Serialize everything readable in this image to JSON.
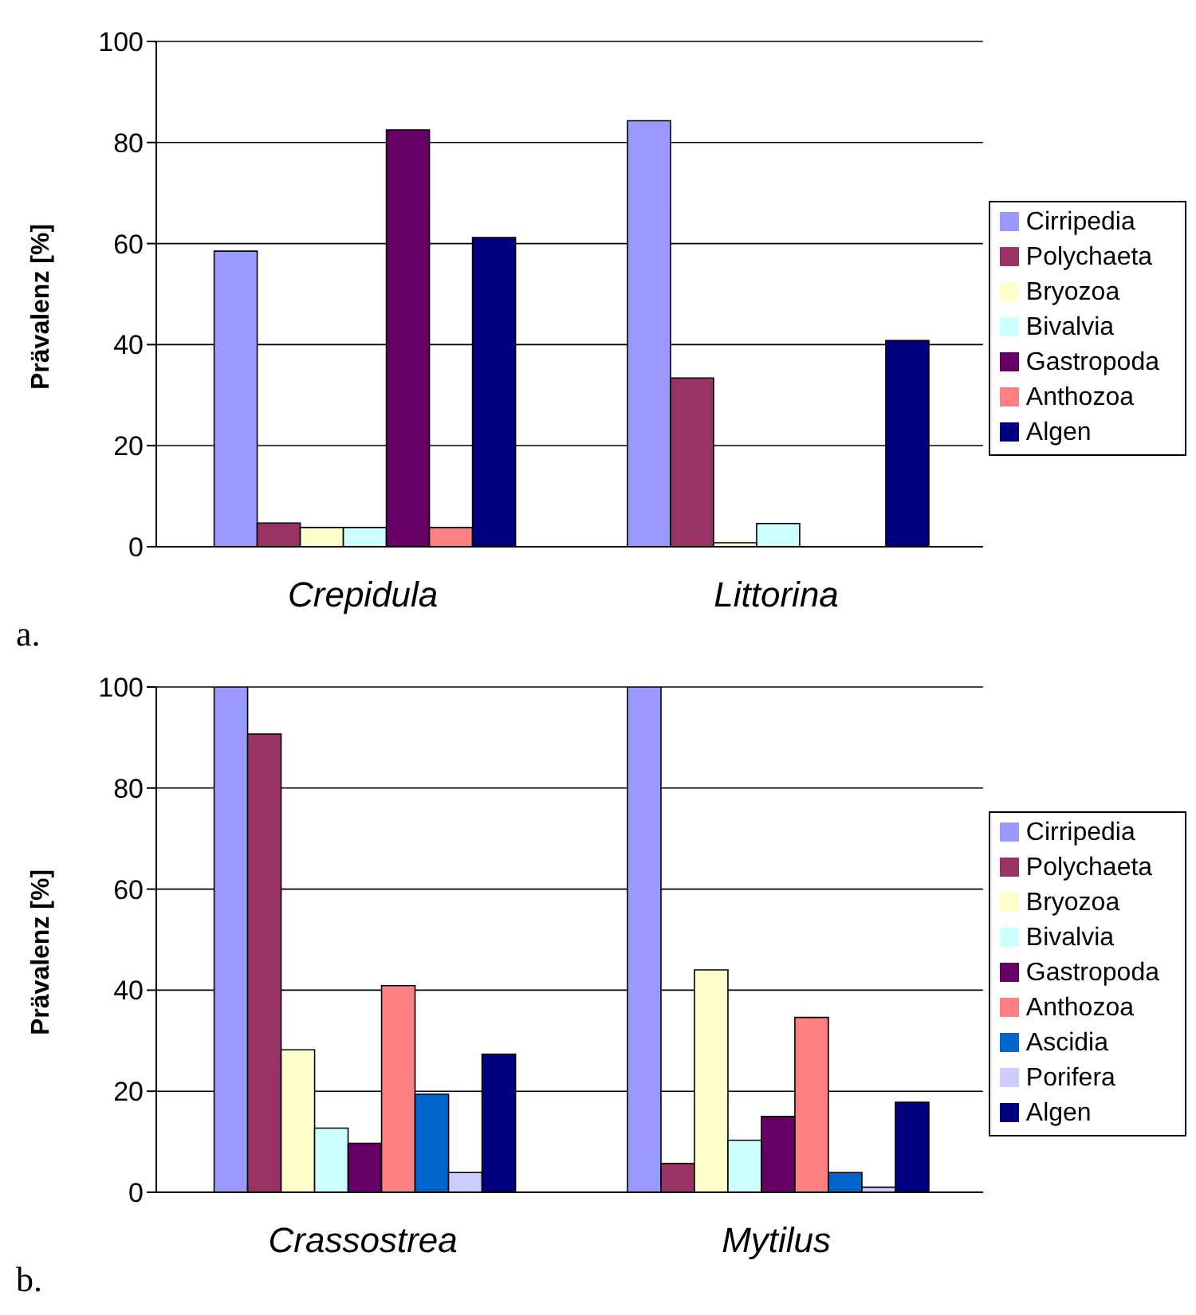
{
  "chart_data": [
    {
      "type": "bar",
      "ylabel": "Prävalenz [%]",
      "categories": [
        "Crepidula",
        "Littorina"
      ],
      "ylim": [
        0,
        100
      ],
      "yticks": [
        0,
        20,
        40,
        60,
        80,
        100
      ],
      "grid": "y",
      "legend": "right",
      "annotations": [
        "a."
      ],
      "series": [
        {
          "name": "Cirripedia",
          "color": "#9999ff",
          "values": [
            58.5,
            84.3
          ]
        },
        {
          "name": "Polychaeta",
          "color": "#993366",
          "values": [
            4.7,
            33.4
          ]
        },
        {
          "name": "Bryozoa",
          "color": "#ffffcc",
          "values": [
            3.8,
            0.8
          ]
        },
        {
          "name": "Bivalvia",
          "color": "#ccffff",
          "values": [
            3.8,
            4.6
          ]
        },
        {
          "name": "Gastropoda",
          "color": "#660066",
          "values": [
            82.5,
            0
          ]
        },
        {
          "name": "Anthozoa",
          "color": "#ff8080",
          "values": [
            3.8,
            0
          ]
        },
        {
          "name": "Algen",
          "color": "#000080",
          "values": [
            61.2,
            40.8
          ]
        }
      ]
    },
    {
      "type": "bar",
      "ylabel": "Prävalenz [%]",
      "categories": [
        "Crassostrea",
        "Mytilus"
      ],
      "ylim": [
        0,
        100
      ],
      "yticks": [
        0,
        20,
        40,
        60,
        80,
        100
      ],
      "grid": "y",
      "legend": "right",
      "annotations": [
        "b."
      ],
      "series": [
        {
          "name": "Cirripedia",
          "color": "#9999ff",
          "values": [
            100,
            100
          ]
        },
        {
          "name": "Polychaeta",
          "color": "#993366",
          "values": [
            90.7,
            5.7
          ]
        },
        {
          "name": "Bryozoa",
          "color": "#ffffcc",
          "values": [
            28.2,
            44
          ]
        },
        {
          "name": "Bivalvia",
          "color": "#ccffff",
          "values": [
            12.7,
            10.3
          ]
        },
        {
          "name": "Gastropoda",
          "color": "#660066",
          "values": [
            9.7,
            15
          ]
        },
        {
          "name": "Anthozoa",
          "color": "#ff8080",
          "values": [
            40.9,
            34.6
          ]
        },
        {
          "name": "Ascidia",
          "color": "#0066cc",
          "values": [
            19.4,
            3.9
          ]
        },
        {
          "name": "Porifera",
          "color": "#ccccff",
          "values": [
            3.9,
            1.0
          ]
        },
        {
          "name": "Algen",
          "color": "#000080",
          "values": [
            27.3,
            17.8
          ]
        }
      ]
    }
  ]
}
